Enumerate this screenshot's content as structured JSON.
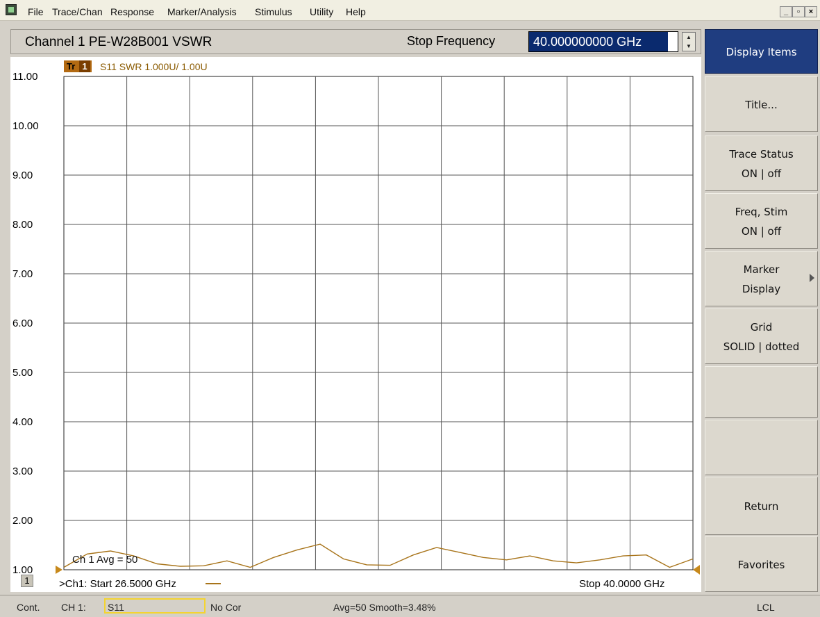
{
  "menu": {
    "items": [
      "File",
      "Trace/Chan",
      "Response",
      "Marker/Analysis",
      "Stimulus",
      "Utility",
      "Help"
    ],
    "window_buttons": [
      "_",
      "▫",
      "×"
    ]
  },
  "header": {
    "channel_title": "Channel 1  PE-W28B001 VSWR",
    "stop_label": "Stop Frequency",
    "stop_value": "40.000000000 GHz"
  },
  "trace": {
    "badge": "Tr",
    "badge_num": "1",
    "description": "S11 SWR 1.000U/  1.00U",
    "color": "#a8741a"
  },
  "chart_data": {
    "type": "line",
    "x": [
      26.5,
      27.0,
      27.5,
      28.0,
      28.5,
      29.0,
      29.5,
      30.0,
      30.5,
      31.0,
      31.5,
      32.0,
      32.5,
      33.0,
      33.5,
      34.0,
      34.5,
      35.0,
      35.5,
      36.0,
      36.5,
      37.0,
      37.5,
      38.0,
      38.5,
      39.0,
      39.5,
      40.0
    ],
    "series": [
      {
        "values": [
          1.05,
          1.32,
          1.38,
          1.28,
          1.12,
          1.07,
          1.08,
          1.18,
          1.05,
          1.25,
          1.4,
          1.52,
          1.22,
          1.1,
          1.09,
          1.3,
          1.45,
          1.35,
          1.25,
          1.2,
          1.28,
          1.18,
          1.14,
          1.2,
          1.28,
          1.3,
          1.05,
          1.22
        ]
      }
    ],
    "yticks": [
      "11.00",
      "10.00",
      "9.00",
      "8.00",
      "7.00",
      "6.00",
      "5.00",
      "4.00",
      "3.00",
      "2.00",
      "1.00"
    ],
    "ylim": [
      1,
      11
    ],
    "xlim": [
      26.5,
      40.0
    ],
    "grid": "solid",
    "x_divisions": 10
  },
  "plot": {
    "channel_badge": "1",
    "start_text": ">Ch1: Start  26.5000 GHz",
    "stop_text": "Stop  40.0000 GHz",
    "avg_text": "Ch 1 Avg =    50"
  },
  "softkeys": [
    {
      "line1": "Display Items",
      "line2": "",
      "active": true
    },
    {
      "line1": "Title...",
      "line2": ""
    },
    {
      "line1": "Trace Status",
      "line2": "ON | off"
    },
    {
      "line1": "Freq, Stim",
      "line2": "ON | off"
    },
    {
      "line1": "Marker",
      "line2": "Display",
      "arrow": true
    },
    {
      "line1": "Grid",
      "line2": "SOLID | dotted"
    },
    {
      "line1": "",
      "line2": ""
    },
    {
      "line1": "",
      "line2": ""
    },
    {
      "line1": "Return",
      "line2": ""
    },
    {
      "line1": "Favorites",
      "line2": ""
    }
  ],
  "status": {
    "mode": "Cont.",
    "channel": "CH 1:",
    "param": "S11",
    "correction": "No Cor",
    "averaging": "Avg=50 Smooth=3.48%",
    "remote": "LCL"
  }
}
